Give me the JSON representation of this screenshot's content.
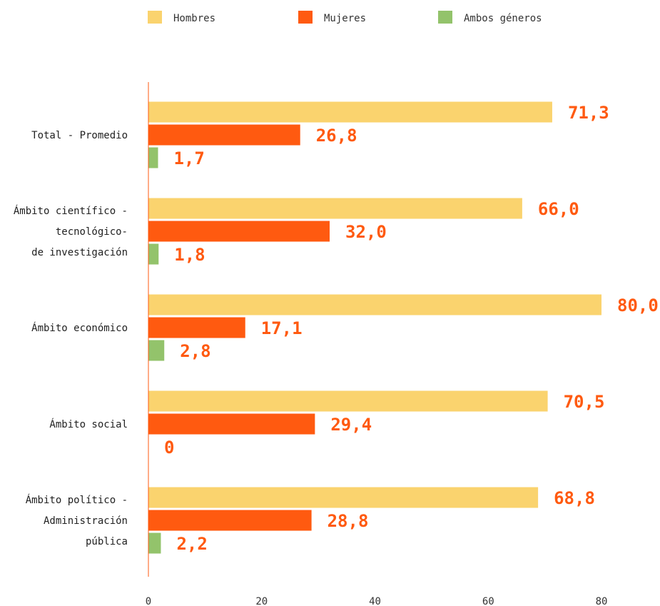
{
  "chart_data": {
    "type": "bar",
    "orientation": "horizontal",
    "categories": [
      [
        "Total - Promedio"
      ],
      [
        "Ámbito científico -",
        "tecnológico-",
        "de investigación"
      ],
      [
        "Ámbito económico"
      ],
      [
        "Ámbito social"
      ],
      [
        "Ámbito político -",
        "Administración",
        "pública"
      ]
    ],
    "series": [
      {
        "name": "Hombres",
        "color": "#FAD36E",
        "values": [
          71.3,
          66.0,
          80.0,
          70.5,
          68.8
        ],
        "labels": [
          "71,3",
          "66,0",
          "80,0",
          "70,5",
          "68,8"
        ]
      },
      {
        "name": "Mujeres",
        "color": "#FF5A10",
        "values": [
          26.8,
          32.0,
          17.1,
          29.4,
          28.8
        ],
        "labels": [
          "26,8",
          "32,0",
          "17,1",
          "29,4",
          "28,8"
        ]
      },
      {
        "name": "Ambos géneros",
        "color": "#93C36B",
        "values": [
          1.7,
          1.8,
          2.8,
          0,
          2.2
        ],
        "labels": [
          "1,7",
          "1,8",
          "2,8",
          "0",
          "2,2"
        ]
      }
    ],
    "xlim": [
      0,
      80
    ],
    "xticks": [
      0,
      20,
      40,
      60,
      80
    ],
    "data_label_color": "#FF5A10",
    "axis_color": "#FF5A10",
    "legend_position": "top",
    "grid": false
  }
}
